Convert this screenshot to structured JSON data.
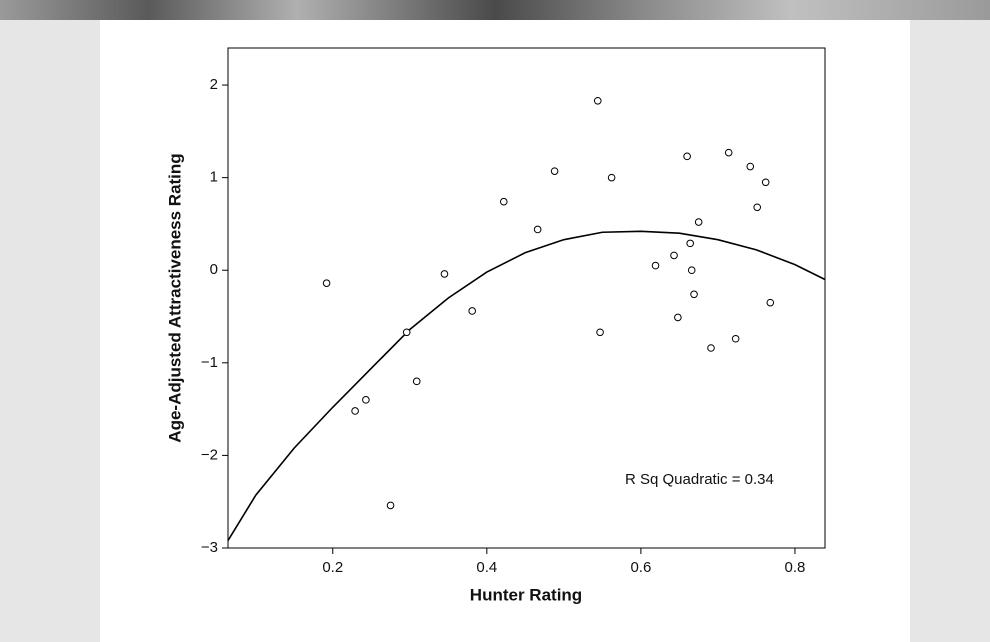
{
  "chart_data": {
    "type": "scatter",
    "x_label": "Hunter Rating",
    "y_label": "Age-Adjusted Attractiveness Rating",
    "annotation": "R Sq Quadratic = 0.34",
    "xlim": [
      0.064,
      0.839
    ],
    "ylim": [
      -3,
      2.4
    ],
    "xticks": [
      0.2,
      0.4,
      0.6,
      0.8
    ],
    "yticks": [
      {
        "value": -3,
        "label": "−3"
      },
      {
        "value": -2,
        "label": "−2"
      },
      {
        "value": -1,
        "label": "−1"
      },
      0,
      1,
      2
    ],
    "color": "#000000",
    "series": [
      {
        "x": [
          0.192,
          0.229,
          0.243,
          0.275,
          0.296,
          0.309,
          0.345,
          0.381,
          0.422,
          0.466,
          0.488,
          0.544,
          0.547,
          0.562,
          0.619,
          0.643,
          0.648,
          0.66,
          0.664,
          0.666,
          0.669,
          0.675,
          0.691,
          0.714,
          0.723,
          0.742,
          0.751,
          0.762,
          0.768
        ],
        "values": [
          -0.14,
          -1.52,
          -1.4,
          -2.54,
          -0.67,
          -1.2,
          -0.04,
          -0.44,
          0.74,
          0.44,
          1.07,
          1.83,
          -0.67,
          1.0,
          0.05,
          0.16,
          -0.51,
          1.23,
          0.29,
          0.0,
          -0.26,
          0.52,
          -0.84,
          1.27,
          -0.74,
          1.12,
          0.68,
          0.95,
          -0.35
        ]
      }
    ],
    "fit": {
      "x": [
        0.064,
        0.1,
        0.15,
        0.2,
        0.25,
        0.3,
        0.35,
        0.4,
        0.45,
        0.5,
        0.55,
        0.6,
        0.65,
        0.7,
        0.75,
        0.8,
        0.839
      ],
      "values": [
        -2.92,
        -2.43,
        -1.92,
        -1.48,
        -1.06,
        -0.64,
        -0.3,
        -0.02,
        0.19,
        0.33,
        0.41,
        0.42,
        0.4,
        0.33,
        0.22,
        0.06,
        -0.1
      ]
    }
  }
}
